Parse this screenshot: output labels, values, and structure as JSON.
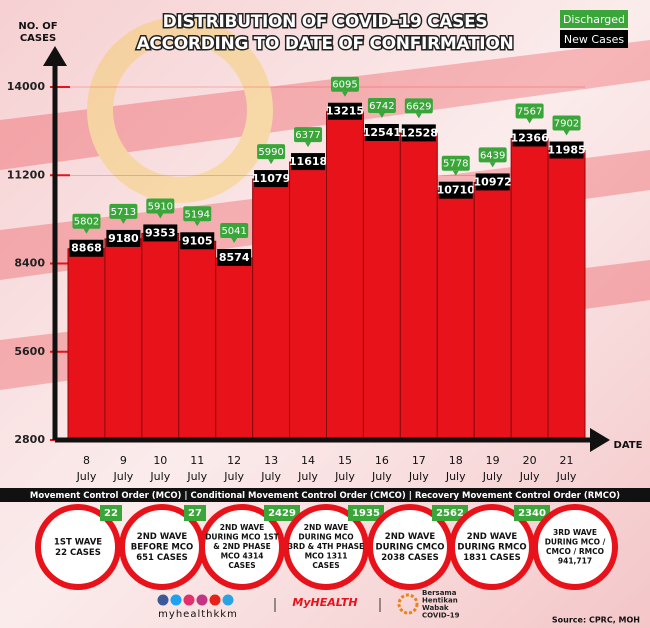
{
  "chart_data": {
    "type": "bar",
    "title": [
      "DISTRIBUTION OF COVID-19 CASES",
      "ACCORDING TO DATE OF CONFIRMATION"
    ],
    "y_label": [
      "NO. OF",
      "CASES"
    ],
    "x_label": "DATE",
    "month": "July",
    "categories": [
      "8",
      "9",
      "10",
      "11",
      "12",
      "13",
      "14",
      "15",
      "16",
      "17",
      "18",
      "19",
      "20",
      "21"
    ],
    "series": [
      {
        "name": "New Cases",
        "color": "#000000",
        "values": [
          8868,
          9180,
          9353,
          9105,
          8574,
          11079,
          11618,
          13215,
          12541,
          12528,
          10710,
          10972,
          12366,
          11985
        ]
      },
      {
        "name": "Discharged",
        "color": "#3aa63a",
        "values": [
          5802,
          5713,
          5910,
          5194,
          5041,
          5990,
          6377,
          6095,
          6742,
          6629,
          5778,
          6439,
          7567,
          7902
        ]
      }
    ],
    "bar_color": "#e8121a",
    "ylim": [
      2800,
      14000
    ],
    "yticks": [
      2800,
      5600,
      8400,
      11200,
      14000
    ],
    "grid": true
  },
  "banner": "Movement Control Order (MCO) | Conditional Movement Control Order (CMCO) | Recovery Movement Control Order (RMCO)",
  "waves": [
    {
      "badge": "22",
      "lines": [
        "1ST WAVE",
        "22 CASES"
      ]
    },
    {
      "badge": "27",
      "lines": [
        "2ND WAVE",
        "BEFORE MCO",
        "651 CASES"
      ]
    },
    {
      "badge": "2429",
      "lines": [
        "2ND WAVE",
        "DURING MCO 1ST",
        "& 2ND PHASE",
        "MCO 4314",
        "CASES"
      ]
    },
    {
      "badge": "1935",
      "lines": [
        "2ND WAVE",
        "DURING MCO",
        "3RD & 4TH PHASE",
        "MCO 1311",
        "CASES"
      ]
    },
    {
      "badge": "2562",
      "lines": [
        "2ND WAVE",
        "DURING CMCO",
        "2038 CASES"
      ]
    },
    {
      "badge": "2340",
      "lines": [
        "2ND WAVE",
        "DURING RMCO",
        "1831 CASES"
      ]
    },
    {
      "lines": [
        "3RD WAVE",
        "DURING MCO /",
        "CMCO / RMCO",
        "941,717"
      ]
    }
  ],
  "footer": {
    "handle": "myhealthkkm",
    "brand": "MyHEALTH",
    "campaign": [
      "Bersama",
      "Hentikan",
      "Wabak",
      "COVID-19"
    ],
    "source": "Source: CPRC, MOH"
  }
}
